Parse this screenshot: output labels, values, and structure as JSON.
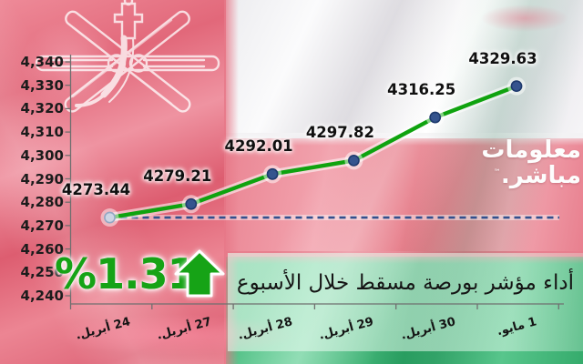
{
  "chart_data": {
    "type": "line",
    "title": "أداء مؤشر بورصة مسقط خلال الأسبوع",
    "categories": [
      "24 أبريل.",
      "27 أبريل.",
      "28 أبريل.",
      "29 أبريل.",
      "30 أبريل.",
      "1 مايو."
    ],
    "values": [
      4273.44,
      4279.21,
      4292.01,
      4297.82,
      4316.25,
      4329.63
    ],
    "value_labels": [
      "4273.44",
      "4279.21",
      "4292.01",
      "4297.82",
      "4316.25",
      "4329.63"
    ],
    "baseline_value": 4273.44,
    "y_axis": {
      "min": 4240,
      "max": 4340,
      "tick_labels": [
        "4,340",
        "4,330",
        "4,320",
        "4,310",
        "4,300",
        "4,290",
        "4,280",
        "4,270",
        "4,260",
        "4,250",
        "4,240"
      ]
    },
    "gridlines": false,
    "legend": false,
    "xlabel": "",
    "ylabel": ""
  },
  "badge": {
    "percent_text": "%1.31",
    "direction": "up"
  },
  "watermark": {
    "line1": "معلومات",
    "line2": "مباشر.",
    "tm_symbol": "™"
  },
  "colors": {
    "line": "#0fa30f",
    "marker": "#35548e",
    "marker_edge": "#1e3a6d",
    "first_marker": "#ccd6e4",
    "first_marker_edge": "#93a7c4",
    "baseline": "#31508e",
    "axis": "#6f6f6f",
    "percent": "#16a316",
    "arrow": "#16a316",
    "flag_red": "#e4717f",
    "flag_green": "#2ba263"
  }
}
